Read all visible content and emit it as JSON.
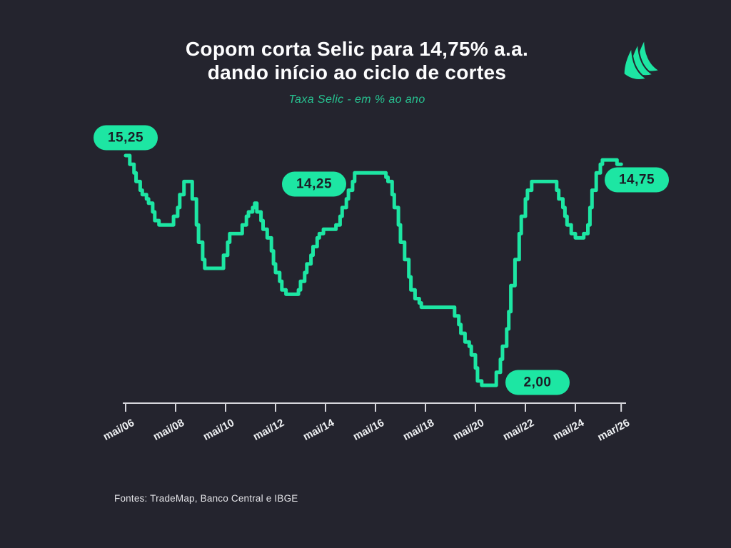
{
  "header": {
    "title_line1": "Copom corta Selic para 14,75% a.a.",
    "title_line2": "dando início ao ciclo de cortes",
    "subtitle": "Taxa Selic - em % ao ano"
  },
  "logo": {
    "name": "trademap-logo",
    "color": "#1de6a3"
  },
  "footer": {
    "source": "Fontes: TradeMap, Banco Central e IBGE"
  },
  "chart_data": {
    "type": "line",
    "subtype": "step",
    "title": "Copom corta Selic para 14,75% a.a. dando início ao ciclo de cortes",
    "series_name": "Taxa Selic (% ao ano)",
    "grid": false,
    "legend": false,
    "y_axis_visible": false,
    "x_axis_visible": true,
    "x_range": [
      "2006-05",
      "2026-03"
    ],
    "y_range_implied": [
      2.0,
      15.25
    ],
    "colors": {
      "line": "#1de6a3",
      "background": "#24242e",
      "axis": "#d6d6dc"
    },
    "x_ticks": [
      {
        "label": "mai/06",
        "month": 0
      },
      {
        "label": "mai/08",
        "month": 24
      },
      {
        "label": "mai/10",
        "month": 48
      },
      {
        "label": "mai/12",
        "month": 72
      },
      {
        "label": "mai/14",
        "month": 96
      },
      {
        "label": "mai/16",
        "month": 120
      },
      {
        "label": "mai/18",
        "month": 144
      },
      {
        "label": "mai/20",
        "month": 168
      },
      {
        "label": "mai/22",
        "month": 192
      },
      {
        "label": "mai/24",
        "month": 216
      },
      {
        "label": "mar/26",
        "month": 238
      }
    ],
    "annotations": [
      {
        "label": "15,25",
        "value": 15.25,
        "date": "2006-05"
      },
      {
        "label": "14,25",
        "value": 14.25,
        "date": "2015-07"
      },
      {
        "label": "2,00",
        "value": 2.0,
        "date": "2020-08"
      },
      {
        "label": "14,75",
        "value": 14.75,
        "date": "2026-01"
      }
    ],
    "changes": [
      [
        "2006-05",
        15.25
      ],
      [
        "2006-07",
        14.75
      ],
      [
        "2006-09",
        14.25
      ],
      [
        "2006-10",
        13.75
      ],
      [
        "2006-12",
        13.25
      ],
      [
        "2007-01",
        13.0
      ],
      [
        "2007-03",
        12.75
      ],
      [
        "2007-04",
        12.5
      ],
      [
        "2007-06",
        12.0
      ],
      [
        "2007-07",
        11.5
      ],
      [
        "2007-09",
        11.25
      ],
      [
        "2008-04",
        11.75
      ],
      [
        "2008-06",
        12.25
      ],
      [
        "2008-07",
        13.0
      ],
      [
        "2008-09",
        13.75
      ],
      [
        "2009-01",
        12.75
      ],
      [
        "2009-03",
        11.25
      ],
      [
        "2009-04",
        10.25
      ],
      [
        "2009-06",
        9.25
      ],
      [
        "2009-07",
        8.75
      ],
      [
        "2010-04",
        9.5
      ],
      [
        "2010-06",
        10.25
      ],
      [
        "2010-07",
        10.75
      ],
      [
        "2011-01",
        11.25
      ],
      [
        "2011-03",
        11.75
      ],
      [
        "2011-04",
        12.0
      ],
      [
        "2011-06",
        12.25
      ],
      [
        "2011-07",
        12.5
      ],
      [
        "2011-08",
        12.0
      ],
      [
        "2011-10",
        11.5
      ],
      [
        "2011-11",
        11.0
      ],
      [
        "2012-01",
        10.5
      ],
      [
        "2012-03",
        9.75
      ],
      [
        "2012-04",
        9.0
      ],
      [
        "2012-05",
        8.5
      ],
      [
        "2012-07",
        8.0
      ],
      [
        "2012-08",
        7.5
      ],
      [
        "2012-10",
        7.25
      ],
      [
        "2013-04",
        7.5
      ],
      [
        "2013-05",
        8.0
      ],
      [
        "2013-07",
        8.5
      ],
      [
        "2013-08",
        9.0
      ],
      [
        "2013-10",
        9.5
      ],
      [
        "2013-11",
        10.0
      ],
      [
        "2014-01",
        10.5
      ],
      [
        "2014-02",
        10.75
      ],
      [
        "2014-04",
        11.0
      ],
      [
        "2014-10",
        11.25
      ],
      [
        "2014-12",
        11.75
      ],
      [
        "2015-01",
        12.25
      ],
      [
        "2015-03",
        12.75
      ],
      [
        "2015-04",
        13.25
      ],
      [
        "2015-06",
        13.75
      ],
      [
        "2015-07",
        14.25
      ],
      [
        "2016-10",
        14.0
      ],
      [
        "2016-11",
        13.75
      ],
      [
        "2017-01",
        13.0
      ],
      [
        "2017-02",
        12.25
      ],
      [
        "2017-04",
        11.25
      ],
      [
        "2017-05",
        10.25
      ],
      [
        "2017-07",
        9.25
      ],
      [
        "2017-09",
        8.25
      ],
      [
        "2017-10",
        7.5
      ],
      [
        "2017-12",
        7.0
      ],
      [
        "2018-02",
        6.75
      ],
      [
        "2018-03",
        6.5
      ],
      [
        "2019-07",
        6.0
      ],
      [
        "2019-09",
        5.5
      ],
      [
        "2019-10",
        5.0
      ],
      [
        "2019-12",
        4.5
      ],
      [
        "2020-02",
        4.25
      ],
      [
        "2020-03",
        3.75
      ],
      [
        "2020-05",
        3.0
      ],
      [
        "2020-06",
        2.25
      ],
      [
        "2020-08",
        2.0
      ],
      [
        "2021-03",
        2.75
      ],
      [
        "2021-05",
        3.5
      ],
      [
        "2021-06",
        4.25
      ],
      [
        "2021-08",
        5.25
      ],
      [
        "2021-09",
        6.25
      ],
      [
        "2021-10",
        7.75
      ],
      [
        "2021-12",
        9.25
      ],
      [
        "2022-02",
        10.75
      ],
      [
        "2022-03",
        11.75
      ],
      [
        "2022-05",
        12.75
      ],
      [
        "2022-06",
        13.25
      ],
      [
        "2022-08",
        13.75
      ],
      [
        "2023-08",
        13.25
      ],
      [
        "2023-09",
        12.75
      ],
      [
        "2023-11",
        12.25
      ],
      [
        "2023-12",
        11.75
      ],
      [
        "2024-01",
        11.25
      ],
      [
        "2024-03",
        10.75
      ],
      [
        "2024-05",
        10.5
      ],
      [
        "2024-09",
        10.75
      ],
      [
        "2024-11",
        11.25
      ],
      [
        "2024-12",
        12.25
      ],
      [
        "2025-01",
        13.25
      ],
      [
        "2025-03",
        14.25
      ],
      [
        "2025-05",
        14.75
      ],
      [
        "2025-06",
        15.0
      ],
      [
        "2026-01",
        14.75
      ]
    ],
    "end_date": "2026-03"
  }
}
